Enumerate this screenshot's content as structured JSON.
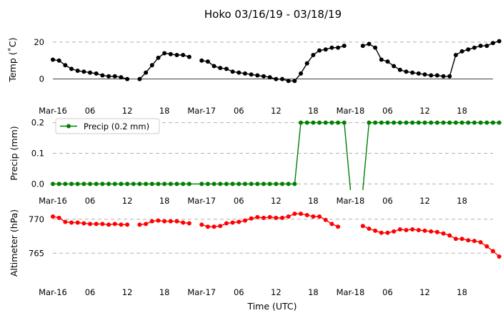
{
  "chart_data": {
    "type": "line",
    "title": "Hoko 03/16/19 - 03/18/19",
    "xlabel": "Time (UTC)",
    "x_tick_labels": [
      "Mar-16",
      "06",
      "12",
      "18",
      "Mar-17",
      "06",
      "12",
      "18",
      "Mar-18",
      "06",
      "12",
      "18"
    ],
    "x_tick_hours": [
      0,
      6,
      12,
      18,
      24,
      30,
      36,
      42,
      48,
      54,
      60,
      66
    ],
    "xlim": [
      0,
      71
    ],
    "panels": [
      {
        "ylabel": "Temp ($^\\circ$C)",
        "ylabel_display": "Temp (˚C)",
        "ylim": [
          -4,
          25
        ],
        "yticks": [
          0,
          20
        ],
        "grid_y": [
          20
        ],
        "zero_line": true,
        "series": [
          {
            "color": "#000000",
            "values": [
              10.5,
              10,
              7.5,
              5.5,
              4.5,
              4,
              3.5,
              3,
              2,
              1.5,
              1.5,
              1,
              0,
              null,
              0,
              3.5,
              7.5,
              11.5,
              14,
              13.5,
              13,
              13,
              12,
              null,
              10,
              9.5,
              7,
              6,
              5.5,
              4,
              3.5,
              3,
              2.5,
              2,
              1.5,
              1,
              0,
              0,
              -1,
              -1,
              3,
              8.5,
              13,
              15.5,
              16,
              17,
              17,
              18,
              null,
              null,
              18,
              19,
              17,
              10.5,
              9.5,
              7,
              5,
              4,
              3.5,
              3,
              2.5,
              2,
              2,
              1.5,
              1.5,
              13,
              15,
              16,
              17,
              18,
              18,
              19.5,
              20.5
            ]
          }
        ]
      },
      {
        "ylabel": "Precip (mm)",
        "ylim": [
          -0.02,
          0.22
        ],
        "yticks": [
          0.0,
          0.1,
          0.2
        ],
        "ytick_labels": [
          "0.0",
          "0.1",
          "0.2"
        ],
        "grid_y": [
          0.0,
          0.1,
          0.2
        ],
        "legend": {
          "label": "Precip (0.2 mm)",
          "placement": "top-left"
        },
        "series": [
          {
            "name": "Precip (0.2 mm)",
            "color": "#008000",
            "values": [
              0,
              0,
              0,
              0,
              0,
              0,
              0,
              0,
              0,
              0,
              0,
              0,
              0,
              0,
              0,
              0,
              0,
              0,
              0,
              0,
              0,
              0,
              0,
              0,
              0,
              0,
              0,
              0,
              0,
              0,
              0,
              0,
              0,
              0,
              0,
              0,
              0,
              0,
              0,
              0,
              0.2,
              0.2,
              0.2,
              0.2,
              0.2,
              0.2,
              0.2,
              0.2,
              -0.02,
              null,
              -0.02,
              0.2,
              0.2,
              0.2,
              0.2,
              0.2,
              0.2,
              0.2,
              0.2,
              0.2,
              0.2,
              0.2,
              0.2,
              0.2,
              0.2,
              0.2,
              0.2,
              0.2,
              0.2,
              0.2,
              0.2,
              0.2,
              0.2
            ],
            "markers_skip": [
              23,
              48,
              50
            ]
          }
        ]
      },
      {
        "ylabel": "Altimeter (hPa)",
        "ylim": [
          760.5,
          772.5
        ],
        "yticks": [
          765,
          770
        ],
        "grid_y": [
          765,
          770
        ],
        "series": [
          {
            "color": "#ff0000",
            "values": [
              770.4,
              770.2,
              769.6,
              769.5,
              769.5,
              769.4,
              769.3,
              769.3,
              769.3,
              769.2,
              769.3,
              769.2,
              769.2,
              null,
              769.2,
              769.3,
              769.7,
              769.8,
              769.7,
              769.7,
              769.7,
              769.5,
              769.4,
              null,
              769.2,
              768.9,
              768.9,
              769.0,
              769.4,
              769.5,
              769.6,
              769.8,
              770.1,
              770.3,
              770.2,
              770.3,
              770.2,
              770.2,
              770.4,
              770.8,
              770.8,
              770.6,
              770.4,
              770.4,
              769.9,
              769.3,
              768.9,
              null,
              null,
              null,
              769.0,
              768.6,
              768.3,
              768.0,
              768.0,
              768.2,
              768.5,
              768.4,
              768.5,
              768.4,
              768.3,
              768.2,
              768.1,
              767.9,
              767.6,
              767.1,
              767.1,
              766.9,
              766.8,
              766.6,
              766.0,
              765.3,
              764.5
            ]
          }
        ]
      }
    ]
  }
}
